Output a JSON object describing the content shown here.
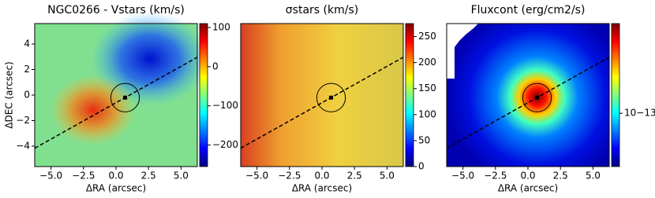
{
  "chart_data": [
    {
      "type": "heatmap",
      "title": "NGC0266 - Vstars (km/s)",
      "xlabel": "ΔRA (arcsec)",
      "ylabel": "ΔDEC (arcsec)",
      "xlim": [
        -6.25,
        6.25
      ],
      "ylim": [
        -5.6,
        5.6
      ],
      "xticks": [
        {
          "value": -5,
          "label": "−5.0"
        },
        {
          "value": -2.5,
          "label": "−2.5"
        },
        {
          "value": 0,
          "label": "0.0"
        },
        {
          "value": 2.5,
          "label": "2.5"
        },
        {
          "value": 5,
          "label": "5.0"
        }
      ],
      "yticks": [
        {
          "value": -4,
          "label": "−4"
        },
        {
          "value": -2,
          "label": "−2"
        },
        0,
        2,
        4
      ],
      "center": [
        0.7,
        -0.2
      ],
      "aperture_radius": 1.1,
      "axis_slope": 0.57,
      "colorbar": {
        "cmap": "jet",
        "log": false,
        "lim": [
          -255,
          110
        ],
        "ticks": [
          {
            "value": -200,
            "label": "−200"
          },
          {
            "value": -100,
            "label": "−100"
          },
          0,
          100
        ]
      }
    },
    {
      "type": "heatmap",
      "title": "σstars (km/s)",
      "xlabel": "ΔRA (arcsec)",
      "xlim": [
        -6.25,
        6.25
      ],
      "ylim": [
        -5.6,
        5.6
      ],
      "xticks": [
        {
          "value": -5,
          "label": "−5.0"
        },
        {
          "value": -2.5,
          "label": "−2.5"
        },
        {
          "value": 0,
          "label": "0.0"
        },
        {
          "value": 2.5,
          "label": "2.5"
        },
        {
          "value": 5,
          "label": "5.0"
        }
      ],
      "center": [
        0.7,
        -0.2
      ],
      "aperture_radius": 1.1,
      "axis_slope": 0.57,
      "colorbar": {
        "cmap": "jet",
        "log": false,
        "lim": [
          0,
          275
        ],
        "ticks": [
          0,
          50,
          100,
          150,
          200,
          250
        ]
      }
    },
    {
      "type": "heatmap",
      "title": "Fluxcont (erg/cm2/s)",
      "xlabel": "ΔRA (arcsec)",
      "xlim": [
        -6.25,
        6.25
      ],
      "ylim": [
        -5.6,
        5.6
      ],
      "xticks": [
        {
          "value": -5,
          "label": "−5.0"
        },
        {
          "value": -2.5,
          "label": "−2.5"
        },
        {
          "value": 0,
          "label": "0.0"
        },
        {
          "value": 2.5,
          "label": "2.5"
        },
        {
          "value": 5,
          "label": "5.0"
        }
      ],
      "center": [
        0.7,
        -0.2
      ],
      "aperture_radius": 1.1,
      "axis_slope": 0.57,
      "colorbar": {
        "cmap": "jet",
        "log": true,
        "lim": [
          2e-14,
          1.5e-12
        ],
        "ticks": [
          {
            "value": 1e-13,
            "label": "10−13"
          }
        ]
      }
    }
  ]
}
